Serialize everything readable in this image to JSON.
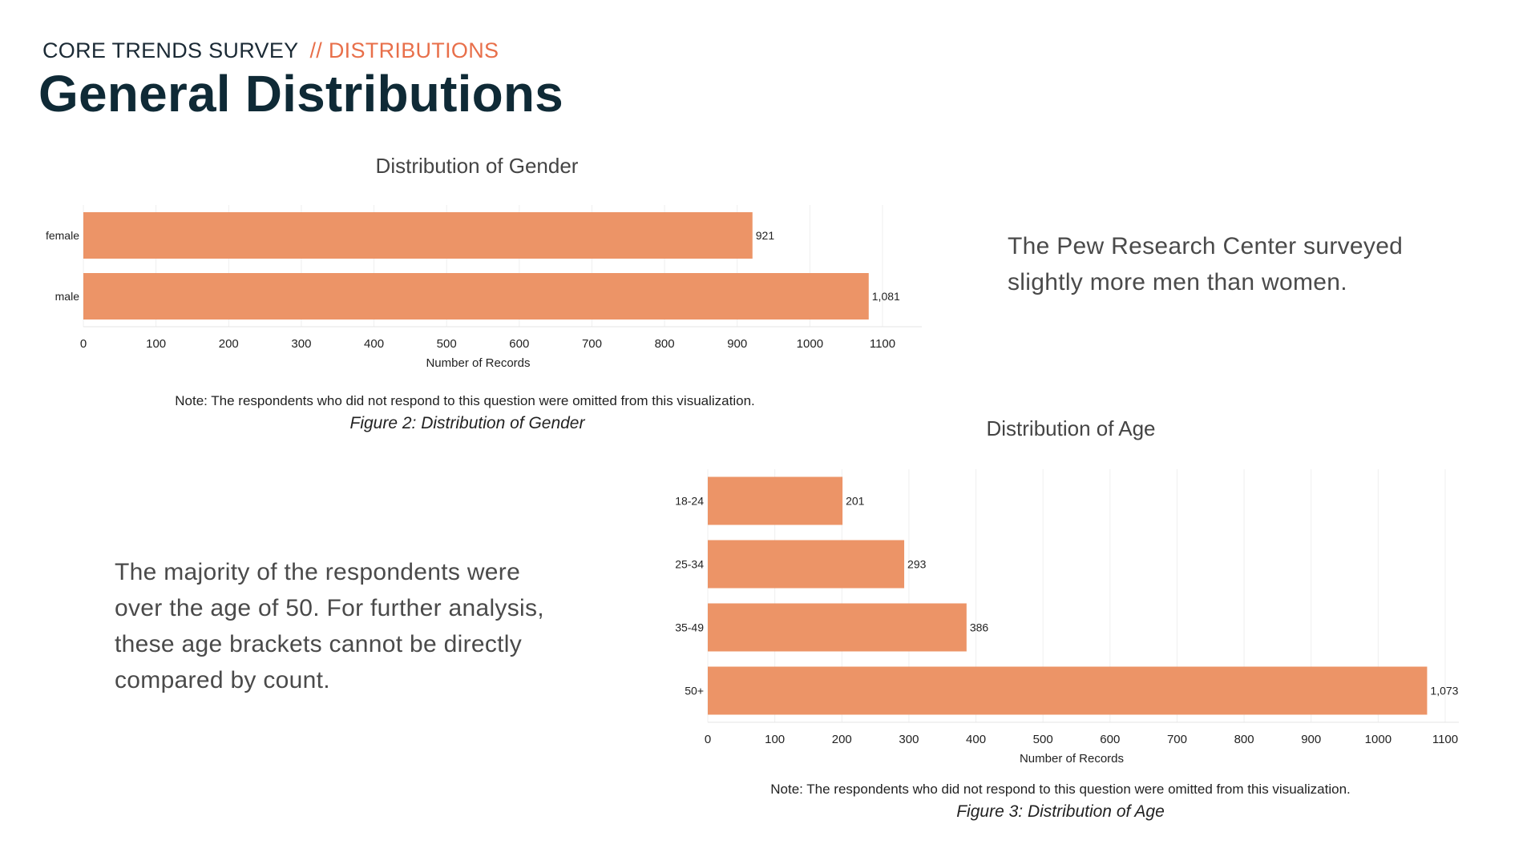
{
  "header": {
    "kicker": "CORE TRENDS SURVEY",
    "section": "// DISTRIBUTIONS",
    "title": "General Distributions"
  },
  "colors": {
    "bar": "#ec9467",
    "accent": "#e86f4a",
    "title": "#0f2a36"
  },
  "gender_section": {
    "insight": "The Pew Research Center surveyed slightly more men than women.",
    "note": "Note: The respondents who did not respond to this question were omitted from this visualization.",
    "caption": "Figure 2: Distribution of Gender"
  },
  "age_section": {
    "insight": "The majority of the respondents were over the age of 50. For further analysis, these age brackets cannot be directly compared by count.",
    "note": "Note: The respondents who did not respond to this question were omitted from this visualization.",
    "caption": "Figure 3: Distribution of Age"
  },
  "chart_data": [
    {
      "type": "bar",
      "orientation": "horizontal",
      "title": "Distribution of Gender",
      "xlabel": "Number of Records",
      "ylabel": "",
      "categories": [
        "female",
        "male"
      ],
      "values": [
        921,
        1081
      ],
      "data_labels": [
        "921",
        "1,081"
      ],
      "xlim": [
        0,
        1100
      ],
      "x_ticks": [
        0,
        100,
        200,
        300,
        400,
        500,
        600,
        700,
        800,
        900,
        1000,
        1100
      ],
      "grid": true
    },
    {
      "type": "bar",
      "orientation": "horizontal",
      "title": "Distribution of Age",
      "xlabel": "Number of Records",
      "ylabel": "",
      "categories": [
        "18-24",
        "25-34",
        "35-49",
        "50+"
      ],
      "values": [
        201,
        293,
        386,
        1073
      ],
      "data_labels": [
        "201",
        "293",
        "386",
        "1,073"
      ],
      "xlim": [
        0,
        1100
      ],
      "x_ticks": [
        0,
        100,
        200,
        300,
        400,
        500,
        600,
        700,
        800,
        900,
        1000,
        1100
      ],
      "grid": true
    }
  ]
}
